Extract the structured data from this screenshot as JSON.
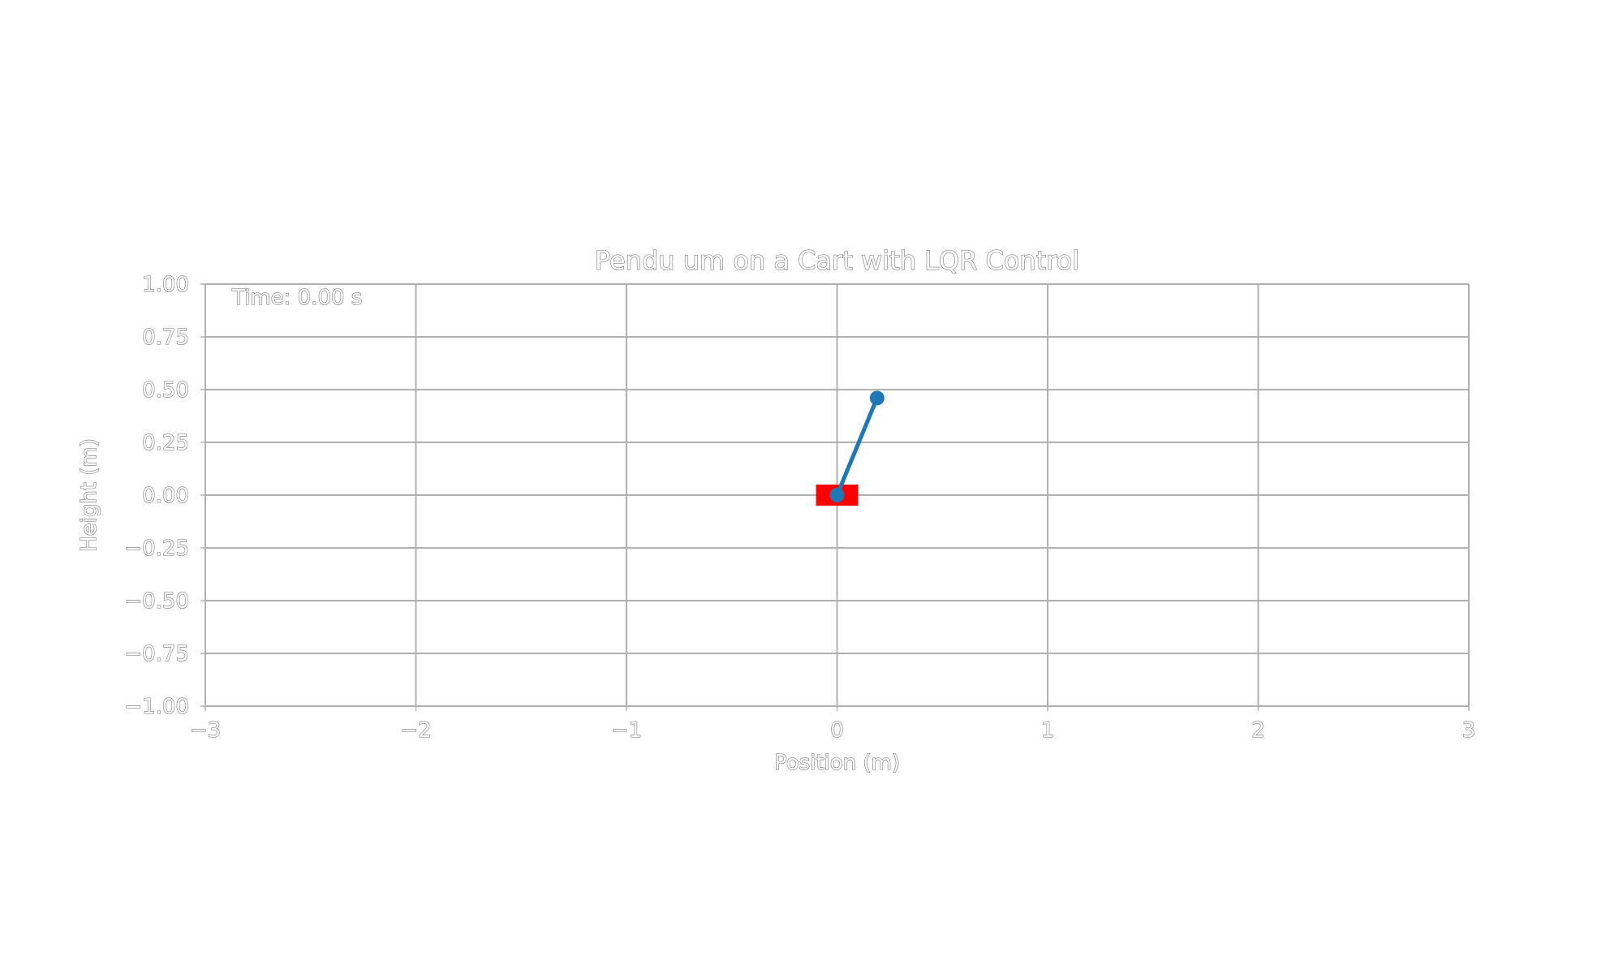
{
  "chart_data": {
    "type": "line",
    "title": "Pendu um on a Cart with LQR Control",
    "xlabel": "Position (m)",
    "ylabel": "Height (m)",
    "xlim": [
      -3,
      3
    ],
    "ylim": [
      -1,
      1
    ],
    "xticks": [
      -3,
      -2,
      -1,
      0,
      1,
      2,
      3
    ],
    "xtick_labels": [
      "−3",
      "−2",
      "−1",
      "0",
      "1",
      "2",
      "3"
    ],
    "yticks": [
      1.0,
      0.75,
      0.5,
      0.25,
      0.0,
      -0.25,
      -0.5,
      -0.75,
      -1.0
    ],
    "ytick_labels": [
      "1.00",
      "0.75",
      "0.50",
      "0.25",
      "0.00",
      "−0.25",
      "−0.50",
      "−0.75",
      "−1.00"
    ],
    "grid": true,
    "annotation": "Time: 0.00 s",
    "cart": {
      "x_min": -0.1,
      "x_max": 0.1,
      "y_min": -0.05,
      "y_max": 0.05,
      "color": "#ff0000"
    },
    "pendulum": {
      "color": "#1f77b4",
      "points": [
        {
          "x": 0.0,
          "y": 0.0
        },
        {
          "x": 0.19,
          "y": 0.46
        }
      ]
    }
  }
}
